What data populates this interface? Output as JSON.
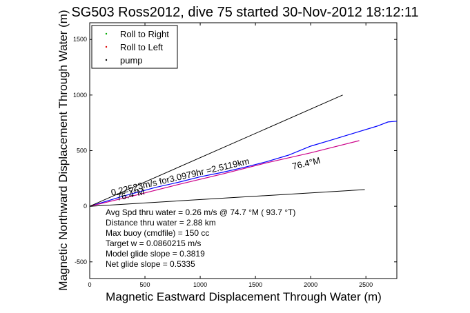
{
  "chart_data": {
    "type": "line",
    "title": "SG503 Ross2012, dive 75 started 30-Nov-2012 18:12:11",
    "xlabel": "Magnetic Eastward Displacement Through Water (m)",
    "ylabel": "Magnetic Northward Displacement Through Water (m)",
    "xlim": [
      0,
      2780
    ],
    "ylim": [
      -650,
      1650
    ],
    "xticks": [
      0,
      500,
      1000,
      1500,
      2000,
      2500
    ],
    "yticks": [
      -500,
      0,
      500,
      1000,
      1500
    ],
    "grid": false,
    "legend_position": "top-left",
    "legend": [
      {
        "label": "Roll to Right",
        "color": "#00aa00",
        "marker": "."
      },
      {
        "label": "Roll to Left",
        "color": "#dd0000",
        "marker": "."
      },
      {
        "label": "pump",
        "color": "#000000",
        "marker": "."
      }
    ],
    "series": [
      {
        "color": "#0000ff",
        "x": [
          0,
          150,
          300,
          450,
          600,
          800,
          1000,
          1200,
          1400,
          1600,
          1800,
          2000,
          2200,
          2400,
          2600,
          2700,
          2780
        ],
        "y": [
          0,
          45,
          90,
          130,
          170,
          215,
          265,
          305,
          350,
          400,
          460,
          540,
          600,
          660,
          720,
          758,
          765
        ]
      },
      {
        "color": "#cc0088",
        "x": [
          0,
          400,
          800,
          1200,
          1600,
          2000,
          2440
        ],
        "y": [
          0,
          95,
          195,
          290,
          390,
          480,
          590
        ]
      }
    ],
    "reference_lines": [
      {
        "color": "#000000",
        "x": [
          0,
          2290
        ],
        "y": [
          0,
          1000
        ]
      },
      {
        "color": "#000000",
        "x": [
          0,
          2490
        ],
        "y": [
          0,
          150
        ]
      }
    ],
    "annotations": [
      {
        "text": "0.22523m/s for3.0979hr =2.5119km",
        "x": 200,
        "y": 95,
        "angle_deg": -13
      },
      {
        "text": "76.4°M",
        "x": 1840,
        "y": 330,
        "angle_deg": -13
      },
      {
        "text": "76.4°M",
        "x": 250,
        "y": 50,
        "angle_deg": -13
      }
    ],
    "stats": [
      "Avg Spd thru water =  0.26 m/s @  74.7    °M ( 93.7 °T)",
      "Distance thru water =  2.88 km",
      "Max buoy (cmdfile) = 150 cc",
      "Target w = 0.0860215 m/s",
      "Model glide slope = 0.3819",
      "Net glide slope = 0.5335"
    ]
  }
}
